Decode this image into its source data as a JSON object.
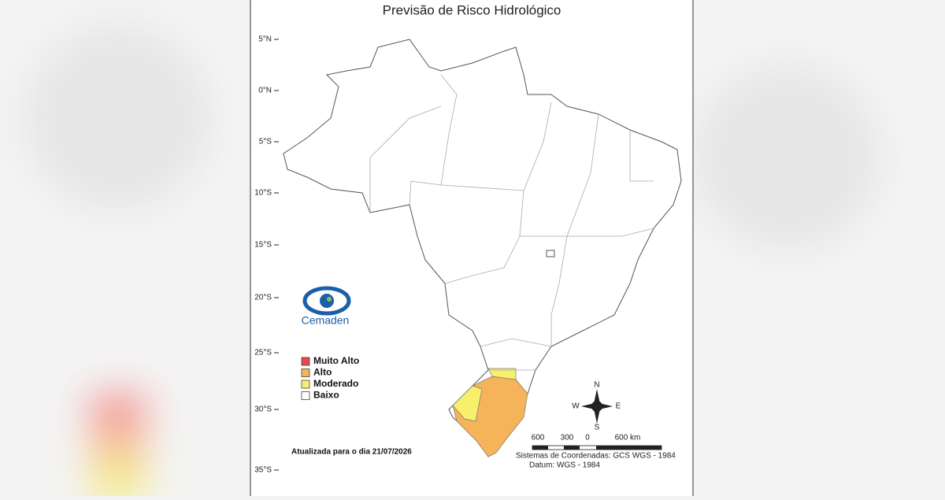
{
  "title": "Previsão de Risco Hidrológico",
  "latitude_labels": [
    "5°N",
    "0°N",
    "5°S",
    "10°S",
    "15°S",
    "20°S",
    "25°S",
    "30°S",
    "35°S"
  ],
  "legend": {
    "items": [
      {
        "label": "Muito Alto",
        "color": "#e8474c"
      },
      {
        "label": "Alto",
        "color": "#f5b35a"
      },
      {
        "label": "Moderado",
        "color": "#f7f06a"
      },
      {
        "label": "Baixo",
        "color": "#ffffff"
      }
    ]
  },
  "logo": {
    "text": "Cemaden"
  },
  "updated": "Atualizada para o dia 21/07/2026",
  "scale": {
    "labels": [
      "600",
      "300",
      "0",
      "600 km"
    ]
  },
  "compass": {
    "n": "N",
    "w": "W",
    "e": "E",
    "s": "S"
  },
  "coordinate_system": "Sistemas de Coordenadas: GCS WGS - 1984",
  "datum": "Datum: WGS - 1984"
}
